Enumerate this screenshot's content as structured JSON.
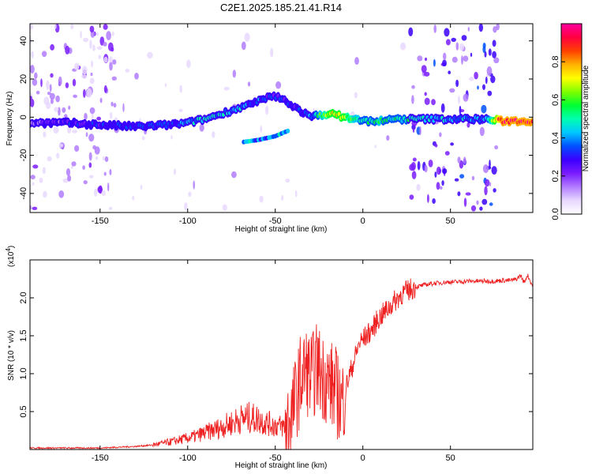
{
  "title": "C2E1.2025.185.21.41.R14",
  "chart_data": [
    {
      "type": "heatmap",
      "xlabel": "Height of straight line (km)",
      "ylabel": "Frequency (Hz)",
      "xlim": [
        -190,
        97
      ],
      "ylim": [
        -50,
        49
      ],
      "xticks": [
        -150,
        -100,
        -50,
        0,
        50
      ],
      "yticks": [
        -40,
        -20,
        0,
        20,
        40
      ],
      "colorbar": {
        "label": "Normalized spectral amplitude",
        "range": [
          0,
          1
        ],
        "ticks": [
          0.0,
          0.2,
          0.4,
          0.6,
          0.8
        ],
        "colors": [
          "#ffffff",
          "#e8d8ff",
          "#b27cff",
          "#7a1cff",
          "#3a00ff",
          "#0050ff",
          "#00c8ff",
          "#00ffb0",
          "#00ff30",
          "#80ff00",
          "#ffff00",
          "#ffb000",
          "#ff4000",
          "#ff0040",
          "#ff00a0"
        ]
      },
      "ridge": {
        "x": [
          -188,
          -170,
          -150,
          -130,
          -110,
          -100,
          -90,
          -80,
          -70,
          -60,
          -55,
          -50,
          -45,
          -40,
          -35,
          -30,
          -25,
          -20,
          -15,
          -10,
          -5,
          0,
          10,
          20,
          30,
          40,
          50,
          60,
          70,
          78,
          97
        ],
        "y": [
          -3,
          -3,
          -4,
          -5,
          -4,
          -3,
          -1,
          2,
          5,
          8,
          10,
          11,
          9,
          6,
          3,
          0,
          1,
          2,
          1,
          0,
          -1,
          -2,
          -2,
          -1,
          -1,
          -1,
          -1,
          -1,
          -1,
          -2,
          -2
        ],
        "amplitude": [
          0.2,
          0.25,
          0.3,
          0.3,
          0.35,
          0.4,
          0.45,
          0.45,
          0.4,
          0.35,
          0.3,
          0.3,
          0.3,
          0.3,
          0.3,
          0.35,
          0.55,
          0.7,
          0.75,
          0.7,
          0.6,
          0.5,
          0.55,
          0.5,
          0.45,
          0.45,
          0.4,
          0.4,
          0.4,
          0.9,
          0.95
        ]
      },
      "secondary_ridge": {
        "x": [
          -68,
          -60,
          -55,
          -50,
          -45,
          -42
        ],
        "y": [
          -13,
          -12,
          -11,
          -10,
          -8,
          -7
        ]
      }
    },
    {
      "type": "line",
      "xlabel": "Height of straight line (km)",
      "ylabel": "SNR (10 * v/v)",
      "y_multiplier": "(x10",
      "y_multiplier_exp": "4",
      "y_multiplier_close": ")",
      "xlim": [
        -190,
        97
      ],
      "ylim": [
        0,
        2.5
      ],
      "xticks": [
        -150,
        -100,
        -50,
        0,
        50
      ],
      "yticks": [
        0.5,
        1.0,
        1.5,
        2.0
      ],
      "ytick_labels": [
        "0.5",
        "1.0",
        "1.5",
        "2.0"
      ],
      "color": "#ee2222",
      "series": [
        {
          "x": [
            -190,
            -180,
            -170,
            -160,
            -150,
            -140,
            -130,
            -120,
            -110,
            -100,
            -95,
            -90,
            -85,
            -80,
            -75,
            -70,
            -65,
            -60,
            -55,
            -50,
            -45,
            -42,
            -40,
            -38,
            -36,
            -34,
            -32,
            -30,
            -28,
            -26,
            -24,
            -22,
            -20,
            -18,
            -16,
            -14,
            -12,
            -10,
            -8,
            -6,
            -4,
            -2,
            0,
            2,
            4,
            6,
            8,
            10,
            12,
            14,
            16,
            18,
            20,
            22,
            24,
            26,
            28,
            30,
            35,
            40,
            45,
            50,
            55,
            60,
            65,
            70,
            75,
            80,
            85,
            88,
            90,
            92,
            94,
            97
          ],
          "y": [
            0.02,
            0.02,
            0.02,
            0.02,
            0.02,
            0.03,
            0.04,
            0.06,
            0.1,
            0.15,
            0.18,
            0.22,
            0.26,
            0.3,
            0.35,
            0.4,
            0.42,
            0.4,
            0.35,
            0.32,
            0.3,
            0.4,
            0.5,
            0.7,
            0.9,
            1.0,
            1.05,
            0.95,
            1.0,
            1.1,
            1.0,
            0.95,
            0.9,
            0.85,
            0.8,
            0.7,
            0.6,
            0.8,
            0.95,
            1.1,
            1.25,
            1.4,
            1.45,
            1.5,
            1.55,
            1.6,
            1.7,
            1.75,
            1.8,
            1.85,
            1.9,
            1.95,
            2.0,
            2.05,
            2.07,
            2.1,
            2.12,
            2.14,
            2.17,
            2.19,
            2.2,
            2.21,
            2.21,
            2.22,
            2.22,
            2.22,
            2.22,
            2.23,
            2.23,
            2.25,
            2.3,
            2.2,
            2.3,
            2.15
          ]
        }
      ]
    }
  ]
}
